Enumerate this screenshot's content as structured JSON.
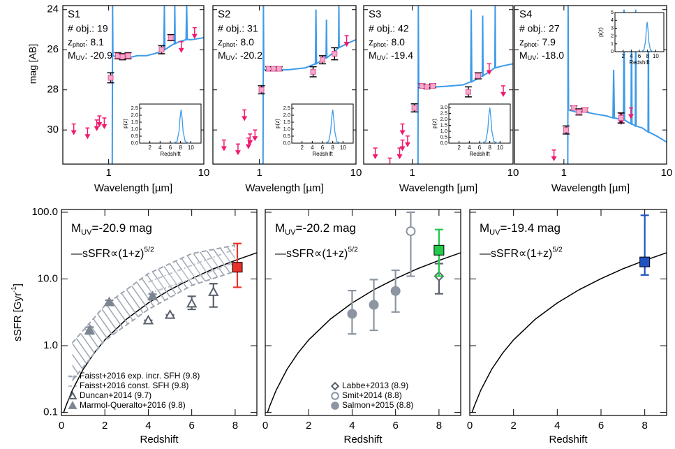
{
  "chart_data": [
    {
      "type": "sed",
      "name": "S1",
      "nobj": "# obj.: 19",
      "zphot": {
        "text": "z",
        "sub": "phot",
        "after": ": 8.1"
      },
      "muv": {
        "text": "M",
        "sub": "UV",
        "after": ": -20.9"
      },
      "xlabel": "Wavelength [µm]",
      "ylabel": "mag [AB]",
      "xlim": [
        0.33,
        10
      ],
      "ylim": [
        31.7,
        23.8
      ],
      "xticks": [
        1,
        10
      ],
      "yticks": [
        24,
        26,
        28,
        30
      ],
      "xlog": true,
      "model": {
        "color": "#3d9be9",
        "x": [
          1.09,
          1.1,
          1.11,
          1.3,
          1.6,
          2.0,
          2.5,
          3.0,
          3.5,
          3.8,
          3.85,
          3.9,
          4.5,
          4.9,
          4.95,
          5.0,
          5.5,
          6.5,
          6.6,
          6.7,
          7.5,
          10
        ],
        "values": [
          31.7,
          23.8,
          26.3,
          26.4,
          26.4,
          26.3,
          26.3,
          26.2,
          26.1,
          26.0,
          23.8,
          26.0,
          25.8,
          25.7,
          23.8,
          25.7,
          25.6,
          25.5,
          23.8,
          25.5,
          25.5,
          25.4
        ]
      },
      "detections": {
        "color": "#f7a8c8",
        "x": [
          1.05,
          1.25,
          1.4,
          1.6,
          3.6,
          4.5
        ],
        "values": [
          27.4,
          26.3,
          26.35,
          26.3,
          26.0,
          25.4
        ],
        "err": [
          0.25,
          0.15,
          0.15,
          0.15,
          0.2,
          0.15
        ]
      },
      "upper_limits": {
        "color": "#f0196e",
        "x": [
          0.43,
          0.6,
          0.75,
          0.8,
          0.9,
          5.8,
          8.0
        ],
        "values": [
          29.7,
          29.9,
          29.5,
          29.3,
          29.4,
          25.6,
          24.9
        ]
      },
      "inset": {
        "loc": "lower right",
        "xlabel": "Redshift",
        "ylabel": "p(z)",
        "xlim": [
          0,
          12
        ],
        "ylim": [
          0,
          2.8
        ],
        "xticks": [
          2,
          4,
          6,
          8,
          10
        ],
        "yticks": [
          {
            "value": 0,
            "label": "0.0"
          },
          {
            "value": 0.5,
            "label": "0.5"
          },
          {
            "value": 1,
            "label": "1.0"
          },
          {
            "value": 1.5,
            "label": "1.5"
          },
          {
            "value": 2,
            "label": "2.0"
          },
          {
            "value": 2.5,
            "label": "2.5"
          }
        ],
        "x": [
          6.6,
          7.3,
          7.7,
          7.9,
          8.1,
          8.3,
          8.5,
          8.9,
          9.6
        ],
        "values": [
          0,
          0.12,
          0.84,
          1.8,
          2.4,
          1.8,
          0.84,
          0.12,
          0
        ]
      }
    },
    {
      "type": "sed",
      "name": "S2",
      "nobj": "# obj.: 31",
      "zphot": {
        "text": "z",
        "sub": "phot",
        "after": ": 8.0"
      },
      "muv": {
        "text": "M",
        "sub": "UV",
        "after": ": -20.2"
      },
      "xlabel": "Wavelength [µm]",
      "xlim": [
        0.33,
        10
      ],
      "ylim": [
        31.7,
        23.8
      ],
      "xticks": [
        1,
        10
      ],
      "yticks": [
        24,
        26,
        28,
        30
      ],
      "xlog": true,
      "model": {
        "color": "#3d9be9",
        "x": [
          1.09,
          1.1,
          1.11,
          1.3,
          1.6,
          2.0,
          3.0,
          3.8,
          3.85,
          3.9,
          4.5,
          4.9,
          4.95,
          5.0,
          6.0,
          6.6,
          6.65,
          6.7,
          8.0,
          10
        ],
        "values": [
          31.7,
          23.8,
          27.0,
          27.0,
          27.0,
          27.0,
          26.9,
          26.7,
          24.0,
          26.7,
          26.5,
          26.4,
          24.5,
          26.4,
          26.1,
          25.9,
          23.8,
          25.9,
          25.7,
          25.5
        ]
      },
      "detections": {
        "color": "#f7a8c8",
        "x": [
          1.05,
          1.25,
          1.4,
          1.6,
          3.6,
          4.5,
          6.0
        ],
        "values": [
          28.0,
          26.95,
          26.95,
          26.95,
          27.1,
          26.5,
          26.2
        ],
        "err": [
          0.2,
          0.1,
          0.1,
          0.1,
          0.25,
          0.2,
          0.3
        ]
      },
      "upper_limits": {
        "color": "#f0196e",
        "x": [
          0.43,
          0.6,
          0.7,
          0.77,
          0.8,
          0.9,
          8.0
        ],
        "values": [
          30.5,
          30.7,
          29.0,
          30.4,
          30.2,
          30.0,
          25.3
        ]
      },
      "inset": {
        "loc": "lower right",
        "xlabel": "Redshift",
        "ylabel": "p(z)",
        "xlim": [
          0,
          12
        ],
        "ylim": [
          0,
          2.8
        ],
        "xticks": [
          2,
          4,
          6,
          8,
          10
        ],
        "yticks": [
          {
            "value": 0,
            "label": "0.0"
          },
          {
            "value": 0.5,
            "label": "0.5"
          },
          {
            "value": 1,
            "label": "1.0"
          },
          {
            "value": 1.5,
            "label": "1.5"
          },
          {
            "value": 2,
            "label": "2.0"
          },
          {
            "value": 2.5,
            "label": "2.5"
          }
        ],
        "x": [
          6.5,
          7.2,
          7.6,
          7.8,
          8.0,
          8.2,
          8.4,
          8.8,
          9.5
        ],
        "values": [
          0,
          0.12,
          0.84,
          1.8,
          2.4,
          1.8,
          0.84,
          0.12,
          0
        ]
      }
    },
    {
      "type": "sed",
      "name": "S3",
      "nobj": "# obj.: 42",
      "zphot": {
        "text": "z",
        "sub": "phot",
        "after": ": 8.0"
      },
      "muv": {
        "text": "M",
        "sub": "UV",
        "after": ": -19.4"
      },
      "xlabel": "Wavelength [µm]",
      "xlim": [
        0.33,
        10
      ],
      "ylim": [
        31.7,
        23.8
      ],
      "xticks": [
        1,
        10
      ],
      "yticks": [
        24,
        26,
        28,
        30
      ],
      "xlog": true,
      "model": {
        "color": "#3d9be9",
        "x": [
          1.14,
          1.15,
          1.16,
          1.4,
          1.8,
          2.5,
          3.2,
          3.8,
          3.85,
          3.9,
          4.6,
          4.95,
          5.0,
          5.05,
          5.8,
          6.6,
          6.65,
          6.7,
          8.0,
          10
        ],
        "values": [
          31.7,
          23.8,
          27.8,
          27.8,
          27.85,
          27.8,
          27.75,
          27.6,
          24.0,
          27.6,
          27.4,
          27.3,
          24.3,
          27.3,
          27.1,
          26.9,
          23.8,
          26.9,
          26.8,
          26.7
        ]
      },
      "detections": {
        "color": "#f7a8c8",
        "x": [
          1.05,
          1.25,
          1.4,
          1.6,
          3.6,
          4.5
        ],
        "values": [
          28.9,
          27.8,
          27.85,
          27.8,
          28.1,
          27.3
        ],
        "err": [
          0.2,
          0.1,
          0.1,
          0.1,
          0.25,
          0.15
        ]
      },
      "upper_limits": {
        "color": "#f0196e",
        "x": [
          0.43,
          0.6,
          0.75,
          0.8,
          0.8,
          0.9,
          5.8,
          8.0
        ],
        "values": [
          30.9,
          31.4,
          30.9,
          30.5,
          29.7,
          30.3,
          26.7,
          27.8
        ]
      },
      "inset": {
        "loc": "lower right",
        "xlabel": "Redshift",
        "ylabel": "p(z)",
        "xlim": [
          0,
          12
        ],
        "ylim": [
          0,
          3.3
        ],
        "xticks": [
          2,
          4,
          6,
          8,
          10
        ],
        "yticks": [
          {
            "value": 0,
            "label": "0.0"
          },
          {
            "value": 0.5,
            "label": "0.5"
          },
          {
            "value": 1,
            "label": "1.0"
          },
          {
            "value": 1.5,
            "label": "1.5"
          },
          {
            "value": 2,
            "label": "2.0"
          },
          {
            "value": 2.5,
            "label": "2.5"
          },
          {
            "value": 3,
            "label": "3.0"
          }
        ],
        "x": [
          6.5,
          7.2,
          7.6,
          7.8,
          8.0,
          8.2,
          8.4,
          8.8,
          9.5
        ],
        "values": [
          0,
          0.15,
          1.05,
          2.25,
          3.0,
          2.25,
          1.05,
          0.15,
          0
        ]
      }
    },
    {
      "type": "sed",
      "name": "S4",
      "nobj": "# obj.: 27",
      "zphot": {
        "text": "z",
        "sub": "phot",
        "after": ": 7.9"
      },
      "muv": {
        "text": "M",
        "sub": "UV",
        "after": ": -18.0"
      },
      "xlabel": "Wavelength [µm]",
      "xlim": [
        0.33,
        10
      ],
      "ylim": [
        31.7,
        23.8
      ],
      "xticks": [
        1,
        10
      ],
      "yticks": [
        24,
        26,
        28,
        30
      ],
      "xlog": true,
      "model": {
        "color": "#3d9be9",
        "x": [
          1.09,
          1.1,
          1.11,
          1.3,
          1.6,
          2.0,
          2.6,
          3.0,
          3.05,
          3.1,
          3.8,
          3.85,
          3.9,
          4.5,
          4.55,
          4.6,
          4.95,
          5.0,
          5.05,
          5.8,
          6.6,
          6.65,
          6.7,
          8.0,
          10
        ],
        "values": [
          31.7,
          23.8,
          29.0,
          29.1,
          29.1,
          29.2,
          29.3,
          29.4,
          27.0,
          29.4,
          29.5,
          24.0,
          29.5,
          29.7,
          24.5,
          29.7,
          29.8,
          24.0,
          29.8,
          29.9,
          30.1,
          24.3,
          30.1,
          30.3,
          30.6
        ]
      },
      "detections": {
        "color": "#f7a8c8",
        "x": [
          1.05,
          1.25,
          1.4,
          1.6,
          3.6
        ],
        "values": [
          30.0,
          28.9,
          29.1,
          29.0,
          29.4
        ],
        "err": [
          0.2,
          0.1,
          0.15,
          0.1,
          0.25
        ]
      },
      "upper_limits": {
        "color": "#f0196e",
        "x": [
          0.8,
          3.6,
          4.5
        ],
        "values": [
          31.0,
          29.2,
          28.9
        ]
      },
      "inset": {
        "loc": "upper right",
        "xlabel": "Redshift",
        "ylabel": "p(z)",
        "xlim": [
          0,
          12
        ],
        "ylim": [
          0,
          5
        ],
        "xticks": [
          2,
          4,
          6,
          8,
          10
        ],
        "yticks": [
          0,
          1,
          2,
          3,
          4,
          5
        ],
        "x": [
          6.4,
          7.1,
          7.5,
          7.7,
          7.9,
          8.1,
          8.3,
          8.7,
          9.4
        ],
        "values": [
          0,
          0.19,
          1.33,
          2.85,
          3.8,
          2.85,
          1.33,
          0.19,
          0
        ]
      }
    },
    {
      "type": "ssfr",
      "title": {
        "text": "M",
        "sub": "UV",
        "after": "=-20.9 mag"
      },
      "title_color": "#d42020",
      "xlabel": "Redshift",
      "ylabel": {
        "text": "sSFR [Gyr",
        "sup": "-1",
        "after": "]"
      },
      "xlim": [
        0,
        9
      ],
      "ylim": [
        0.09,
        110
      ],
      "ylog": true,
      "xticks": [
        0,
        2,
        4,
        6,
        8
      ],
      "yticks": [
        {
          "value": 0.1,
          "label": "0.1"
        },
        {
          "value": 1,
          "label": "1.0"
        },
        {
          "value": 10,
          "label": "10.0"
        },
        {
          "value": 100,
          "label": "100.0"
        }
      ],
      "legend": "lower left",
      "relation": {
        "label": {
          "text": "—sSFR∝(1+z)",
          "sup": "5/2"
        },
        "color": "#000",
        "x": [
          0.1,
          0.2,
          0.5,
          1,
          1.5,
          2,
          3,
          4,
          5,
          6,
          7,
          8,
          9
        ],
        "values": [
          0.099,
          0.123,
          0.215,
          0.442,
          0.773,
          1.22,
          2.5,
          4.37,
          6.9,
          10.1,
          14.2,
          19,
          24.7
        ]
      },
      "series": [
        {
          "name": "Faisst+2016 exp. incr. SFH (9.8)",
          "color": "#9ea6b2",
          "marker": "band-dashed",
          "x": [
            0.5,
            2,
            4,
            6,
            8
          ],
          "lower": [
            0.3,
            1.2,
            3.5,
            8,
            13
          ],
          "upper": [
            1.1,
            4,
            12,
            24,
            32
          ]
        },
        {
          "name": "Faisst+2016 const. SFH (9.8)",
          "color": "#bcc2cb",
          "marker": "band-dashdot",
          "x": [
            4,
            6,
            8
          ],
          "lower": [
            6,
            10,
            18
          ],
          "upper": [
            9,
            16,
            28
          ]
        },
        {
          "name": "Duncan+2014 (9.7)",
          "color": "#5a616c",
          "marker": "open-triangle",
          "x": [
            4,
            5,
            6,
            7
          ],
          "values": [
            2.4,
            2.9,
            4.3,
            6.4
          ],
          "lower": [
            2.4,
            2.9,
            3.5,
            3.8
          ],
          "upper": [
            2.4,
            2.9,
            5.5,
            8.5
          ]
        },
        {
          "name": "Marmol-Queralto+2016 (9.8)",
          "color": "#7d8591",
          "marker": "triangle",
          "x": [
            1.3,
            2.2,
            4.2
          ],
          "values": [
            1.7,
            4.5,
            5.5
          ],
          "lower": [
            1.5,
            4.2,
            5.1
          ],
          "upper": [
            1.9,
            4.8,
            5.9
          ]
        },
        {
          "color": "#e8322a",
          "marker": "square",
          "x": [
            8.1
          ],
          "values": [
            15
          ],
          "lower": [
            7.5
          ],
          "upper": [
            34
          ]
        }
      ]
    },
    {
      "type": "ssfr",
      "title": {
        "text": "M",
        "sub": "UV",
        "after": "=-20.2 mag"
      },
      "title_color": "#1aa33a",
      "xlabel": "Redshift",
      "xlim": [
        0,
        9
      ],
      "ylim": [
        0.09,
        110
      ],
      "ylog": true,
      "xticks": [
        0,
        2,
        4,
        6,
        8
      ],
      "yticks": [
        0.1,
        1,
        10,
        100
      ],
      "legend": "lower center",
      "relation": {
        "label": {
          "text": "—sSFR∝(1+z)",
          "sup": "5/2"
        },
        "color": "#000",
        "x": [
          0.1,
          0.2,
          0.5,
          1,
          1.5,
          2,
          3,
          4,
          5,
          6,
          7,
          8,
          9
        ],
        "values": [
          0.099,
          0.123,
          0.215,
          0.442,
          0.773,
          1.22,
          2.5,
          4.37,
          6.9,
          10.1,
          14.2,
          19,
          24.7
        ]
      },
      "series": [
        {
          "name": "Labbe+2013 (8.9)",
          "color": "#5a616c",
          "marker": "open-diamond",
          "x": [
            8
          ],
          "values": [
            11
          ],
          "lower": [
            6
          ],
          "upper": [
            17
          ]
        },
        {
          "name": "Smit+2014 (8.8)",
          "color": "#8c95a2",
          "marker": "open-circle",
          "x": [
            6.7
          ],
          "values": [
            52
          ],
          "lower": [
            11
          ],
          "upper": [
            100
          ]
        },
        {
          "name": "Salmon+2015 (8.8)",
          "color": "#8c95a2",
          "marker": "circle",
          "x": [
            4,
            5,
            6
          ],
          "values": [
            3.0,
            4.1,
            6.6
          ],
          "lower": [
            1.5,
            1.7,
            3.2
          ],
          "upper": [
            6.7,
            9.8,
            13.5
          ]
        },
        {
          "color": "#22c94a",
          "marker": "square",
          "x": [
            8
          ],
          "values": [
            27
          ],
          "lower": [
            11
          ],
          "upper": [
            55
          ]
        }
      ]
    },
    {
      "type": "ssfr",
      "title": {
        "text": "M",
        "sub": "UV",
        "after": "=-19.4 mag"
      },
      "title_color": "#1d3f9e",
      "xlabel": "Redshift",
      "xlim": [
        0,
        9
      ],
      "ylim": [
        0.09,
        110
      ],
      "ylog": true,
      "xticks": [
        0,
        2,
        4,
        6,
        8
      ],
      "yticks": [
        0.1,
        1,
        10,
        100
      ],
      "relation": {
        "label": {
          "text": "—sSFR∝(1+z)",
          "sup": "5/2"
        },
        "color": "#000",
        "x": [
          0.1,
          0.2,
          0.5,
          1,
          1.5,
          2,
          3,
          4,
          5,
          6,
          7,
          8,
          9
        ],
        "values": [
          0.099,
          0.123,
          0.215,
          0.442,
          0.773,
          1.22,
          2.5,
          4.37,
          6.9,
          10.1,
          14.2,
          19,
          24.7
        ]
      },
      "series": [
        {
          "color": "#2152c4",
          "marker": "square",
          "x": [
            8
          ],
          "values": [
            18
          ],
          "lower": [
            11.5
          ],
          "upper": [
            90
          ]
        }
      ]
    }
  ]
}
